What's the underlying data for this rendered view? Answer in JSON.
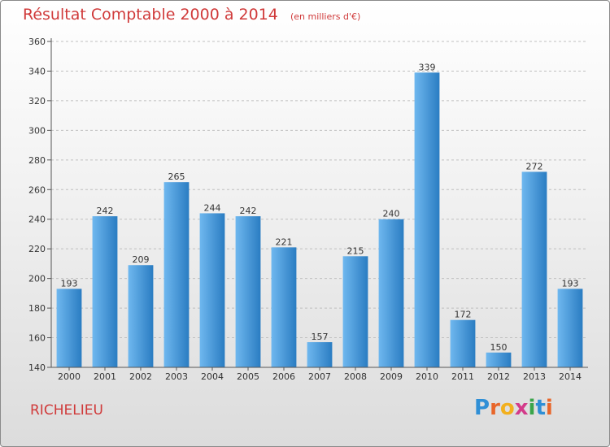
{
  "header": {
    "title": "Résultat Comptable 2000 à 2014",
    "unit": "(en milliers d'€)"
  },
  "footer": {
    "commune": "RICHELIEU",
    "logo_letters": [
      {
        "ch": "P",
        "color": "#2f8fd6"
      },
      {
        "ch": "r",
        "color": "#e8662a"
      },
      {
        "ch": "o",
        "color": "#f2b01e"
      },
      {
        "ch": "x",
        "color": "#d33b8a"
      },
      {
        "ch": "i",
        "color": "#3aa54a"
      },
      {
        "ch": "t",
        "color": "#2f8fd6"
      },
      {
        "ch": "i",
        "color": "#e8662a"
      }
    ]
  },
  "colors": {
    "bar_light": "#6fb8ef",
    "bar_dark": "#2a7cc2",
    "title": "#d03a3a",
    "grid": "#bfbfbf"
  },
  "chart_data": {
    "type": "bar",
    "title": "Résultat Comptable 2000 à 2014",
    "ylabel": "",
    "xlabel": "",
    "categories": [
      "2000",
      "2001",
      "2002",
      "2003",
      "2004",
      "2005",
      "2006",
      "2007",
      "2008",
      "2009",
      "2010",
      "2011",
      "2012",
      "2013",
      "2014"
    ],
    "values": [
      193,
      242,
      209,
      265,
      244,
      242,
      221,
      157,
      215,
      240,
      339,
      172,
      150,
      272,
      193
    ],
    "ylim": [
      140,
      360
    ],
    "yticks": [
      140,
      160,
      180,
      200,
      220,
      240,
      260,
      280,
      300,
      320,
      340,
      360
    ],
    "grid": true,
    "legend": "none"
  }
}
